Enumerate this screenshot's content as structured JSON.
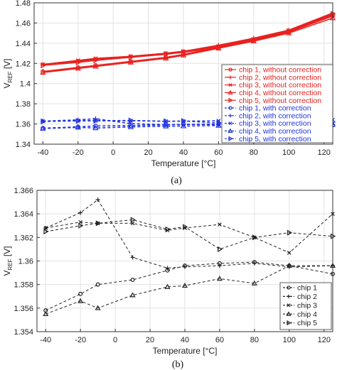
{
  "chart_data": [
    {
      "type": "line",
      "caption": "(a)",
      "xlabel": "Temperature [°C]",
      "ylabel_main": "V",
      "ylabel_sub": "REF",
      "ylabel_unit": " [V]",
      "xlim": [
        -45,
        125
      ],
      "ylim": [
        1.34,
        1.48
      ],
      "xticks": [
        -40,
        -20,
        0,
        20,
        40,
        60,
        80,
        100,
        120
      ],
      "yticks": [
        1.34,
        1.36,
        1.38,
        1.4,
        1.42,
        1.44,
        1.46,
        1.48
      ],
      "ytick_labels": [
        "1.34",
        "1.36",
        "1.38",
        "1.4",
        "1.42",
        "1.44",
        "1.46",
        "1.48"
      ],
      "grid": true,
      "legend_position": "right",
      "x": [
        -40,
        -20,
        -10,
        10,
        30,
        40,
        60,
        80,
        100,
        125
      ],
      "series": [
        {
          "name": "chip 1, without correction",
          "color": "#e8201e",
          "marker": "circle",
          "dash": "solid",
          "values": [
            1.412,
            1.416,
            1.418,
            1.422,
            1.426,
            1.429,
            1.436,
            1.443,
            1.451,
            1.467
          ]
        },
        {
          "name": "chip 2, without correction",
          "color": "#e8201e",
          "marker": "plus",
          "dash": "solid",
          "values": [
            1.419,
            1.422,
            1.424,
            1.427,
            1.43,
            1.432,
            1.438,
            1.445,
            1.453,
            1.47
          ]
        },
        {
          "name": "chip 3, without correction",
          "color": "#e8201e",
          "marker": "x",
          "dash": "solid",
          "values": [
            1.419,
            1.423,
            1.425,
            1.427,
            1.43,
            1.432,
            1.437,
            1.444,
            1.452,
            1.468
          ]
        },
        {
          "name": "chip 4, without correction",
          "color": "#e8201e",
          "marker": "triangle-up",
          "dash": "solid",
          "values": [
            1.411,
            1.415,
            1.417,
            1.421,
            1.425,
            1.428,
            1.435,
            1.442,
            1.45,
            1.465
          ]
        },
        {
          "name": "chip 5, without correction",
          "color": "#e8201e",
          "marker": "triangle-right",
          "dash": "solid",
          "values": [
            1.418,
            1.421,
            1.423,
            1.426,
            1.429,
            1.431,
            1.436,
            1.443,
            1.452,
            1.469
          ]
        },
        {
          "name": "chip 1, with correction",
          "color": "#2233dd",
          "marker": "circle",
          "dash": "dashed",
          "values": [
            1.3558,
            1.3572,
            1.358,
            1.3584,
            1.3592,
            1.3596,
            1.3598,
            1.3599,
            1.3596,
            1.3589
          ]
        },
        {
          "name": "chip 2, with correction",
          "color": "#2233dd",
          "marker": "plus",
          "dash": "dashed",
          "values": [
            1.3628,
            1.3641,
            1.3652,
            1.3603,
            1.3594,
            1.3595,
            1.3596,
            1.3598,
            1.3595,
            1.3596
          ]
        },
        {
          "name": "chip 3, with correction",
          "color": "#2233dd",
          "marker": "x",
          "dash": "dashed",
          "values": [
            1.3628,
            1.3633,
            1.3632,
            1.3632,
            1.3626,
            1.3628,
            1.3631,
            1.362,
            1.3607,
            1.364
          ]
        },
        {
          "name": "chip 4, with correction",
          "color": "#2233dd",
          "marker": "triangle-up",
          "dash": "dashed",
          "values": [
            1.3555,
            1.3566,
            1.356,
            1.3571,
            1.3578,
            1.3579,
            1.3585,
            1.3581,
            1.3596,
            1.3596
          ]
        },
        {
          "name": "chip 5, with correction",
          "color": "#2233dd",
          "marker": "triangle-right",
          "dash": "dashed",
          "values": [
            1.3625,
            1.363,
            1.3632,
            1.3635,
            1.3627,
            1.3629,
            1.361,
            1.362,
            1.3624,
            1.3621
          ]
        }
      ]
    },
    {
      "type": "line",
      "caption": "(b)",
      "xlabel": "Temperature [°C]",
      "ylabel_main": "V",
      "ylabel_sub": "REF",
      "ylabel_unit": " [V]",
      "xlim": [
        -45,
        125
      ],
      "ylim": [
        1.354,
        1.366
      ],
      "xticks": [
        -40,
        -20,
        0,
        20,
        40,
        60,
        80,
        100,
        120
      ],
      "yticks": [
        1.354,
        1.356,
        1.358,
        1.36,
        1.362,
        1.364,
        1.366
      ],
      "ytick_labels": [
        "1.354",
        "1.356",
        "1.358",
        "1.36",
        "1.362",
        "1.364",
        "1.366"
      ],
      "grid": true,
      "legend_position": "bottom-right",
      "x": [
        -40,
        -20,
        -10,
        10,
        30,
        40,
        60,
        80,
        100,
        125
      ],
      "series": [
        {
          "name": "chip 1",
          "color": "#222222",
          "marker": "circle",
          "dash": "dashed",
          "values": [
            1.3558,
            1.3572,
            1.358,
            1.3584,
            1.3592,
            1.3596,
            1.3598,
            1.3599,
            1.3596,
            1.3589
          ]
        },
        {
          "name": "chip 2",
          "color": "#222222",
          "marker": "plus",
          "dash": "dashed",
          "values": [
            1.3628,
            1.3641,
            1.3652,
            1.3603,
            1.3594,
            1.3595,
            1.3596,
            1.3598,
            1.3595,
            1.3596
          ]
        },
        {
          "name": "chip 3",
          "color": "#222222",
          "marker": "x",
          "dash": "dashed",
          "values": [
            1.3628,
            1.3633,
            1.3632,
            1.3632,
            1.3626,
            1.3628,
            1.3631,
            1.362,
            1.3607,
            1.364
          ]
        },
        {
          "name": "chip 4",
          "color": "#222222",
          "marker": "triangle-up",
          "dash": "dashed",
          "values": [
            1.3555,
            1.3566,
            1.356,
            1.3571,
            1.3578,
            1.3579,
            1.3585,
            1.3581,
            1.3596,
            1.3596
          ]
        },
        {
          "name": "chip 5",
          "color": "#222222",
          "marker": "triangle-right",
          "dash": "dashed",
          "values": [
            1.3625,
            1.363,
            1.3632,
            1.3635,
            1.3627,
            1.3629,
            1.361,
            1.362,
            1.3624,
            1.3621
          ]
        }
      ]
    }
  ]
}
